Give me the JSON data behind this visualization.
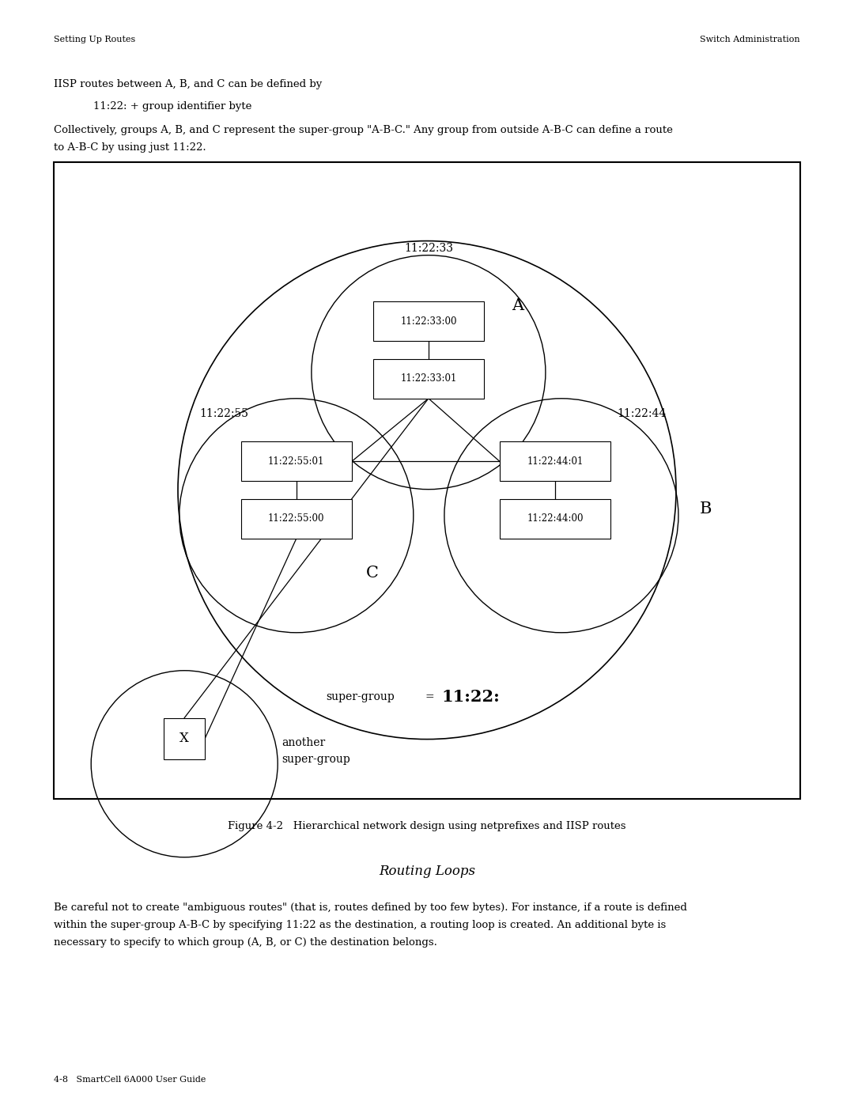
{
  "page_bg": "#ffffff",
  "header_left": "Setting Up Routes",
  "header_right": "Switch Administration",
  "footer_text": "4-8   SmartCell 6A000 User Guide",
  "para1": "IISP routes between A, B, and C can be defined by",
  "para1_indent": "11:22: + group identifier byte",
  "para2_line1": "Collectively, groups A, B, and C represent the super-group \"A-B-C.\" Any group from outside A-B-C can define a route",
  "para2_line2": "to A-B-C by using just 11:22.",
  "fig_caption": "Figure 4-2   Hierarchical network design using netprefixes and IISP routes",
  "section_title": "Routing Loops",
  "section_body_line1": "Be careful not to create \"ambiguous routes\" (that is, routes defined by too few bytes). For instance, if a route is defined",
  "section_body_line2": "within the super-group A-B-C by specifying 11:22 as the destination, a routing loop is created. An additional byte is",
  "section_body_line3": "necessary to specify to which group (A, B, or C) the destination belongs."
}
